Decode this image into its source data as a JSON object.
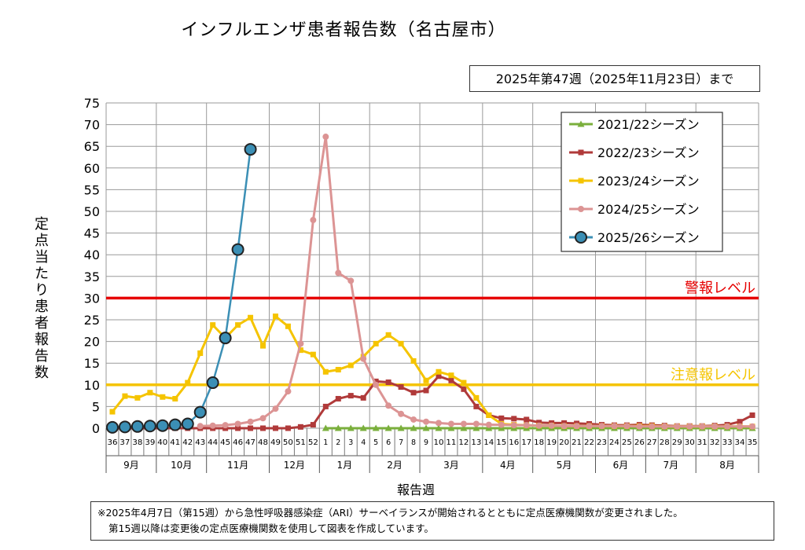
{
  "header": {
    "title": "インフルエンザ患者報告数（名古屋市）",
    "date_note": "2025年第47週（2025年11月23日）まで"
  },
  "footnote": {
    "line1": "※2025年4月7日（第15週）から急性呼吸器感染症（ARI）サーベイランスが開始されるとともに定点医療機関数が変更されました。",
    "line2": "第15週以降は変更後の定点医療機関数を使用して図表を作成しています。"
  },
  "chart_data": {
    "type": "line",
    "title": "インフルエンザ患者報告数（名古屋市）",
    "ylabel": "定点当たり患者報告数",
    "xlabel": "報告週",
    "ylim": [
      0,
      75
    ],
    "yticks": [
      0,
      5,
      10,
      15,
      20,
      25,
      30,
      35,
      40,
      45,
      50,
      55,
      60,
      65,
      70,
      75
    ],
    "grid": true,
    "legend_position": "top-right",
    "weeks": [
      "36",
      "37",
      "38",
      "39",
      "40",
      "41",
      "42",
      "43",
      "44",
      "45",
      "46",
      "47",
      "48",
      "49",
      "50",
      "51",
      "52",
      "1",
      "2",
      "3",
      "4",
      "5",
      "6",
      "7",
      "8",
      "9",
      "10",
      "11",
      "12",
      "13",
      "14",
      "15",
      "16",
      "17",
      "18",
      "19",
      "20",
      "21",
      "22",
      "23",
      "24",
      "25",
      "26",
      "27",
      "28",
      "29",
      "30",
      "31",
      "32",
      "33",
      "34",
      "35"
    ],
    "months": [
      {
        "label": "9月",
        "start": 0,
        "end": 4
      },
      {
        "label": "10月",
        "start": 4,
        "end": 8
      },
      {
        "label": "11月",
        "start": 8,
        "end": 13
      },
      {
        "label": "12月",
        "start": 13,
        "end": 17
      },
      {
        "label": "1月",
        "start": 17,
        "end": 21
      },
      {
        "label": "2月",
        "start": 21,
        "end": 25
      },
      {
        "label": "3月",
        "start": 25,
        "end": 30
      },
      {
        "label": "4月",
        "start": 30,
        "end": 34
      },
      {
        "label": "5月",
        "start": 34,
        "end": 39
      },
      {
        "label": "6月",
        "start": 39,
        "end": 43
      },
      {
        "label": "7月",
        "start": 43,
        "end": 47
      },
      {
        "label": "8月",
        "start": 47,
        "end": 52
      }
    ],
    "thresholds": [
      {
        "label": "警報レベル",
        "value": 30,
        "color": "#e60000"
      },
      {
        "label": "注意報レベル",
        "value": 10,
        "color": "#f5c400"
      }
    ],
    "series": [
      {
        "name": "2021/22シーズン",
        "color": "#7aaf3c",
        "marker": "triangle",
        "values": [
          null,
          null,
          null,
          null,
          null,
          null,
          null,
          null,
          null,
          null,
          null,
          null,
          null,
          null,
          null,
          null,
          null,
          0,
          0,
          0,
          0,
          0,
          0,
          0,
          0,
          0,
          0,
          0,
          0,
          0,
          0,
          0,
          0,
          0,
          0,
          0,
          0,
          0,
          0,
          0,
          0,
          0,
          0,
          0,
          0,
          0,
          0,
          0,
          0,
          0,
          0,
          0
        ]
      },
      {
        "name": "2022/23シーズン",
        "color": "#b03a3a",
        "marker": "square",
        "values": [
          0,
          0,
          0,
          0,
          0,
          0,
          0,
          0,
          0,
          0,
          0,
          0,
          0,
          0,
          0,
          0.3,
          0.8,
          5,
          6.8,
          7.5,
          7,
          10.8,
          10.6,
          9.5,
          8.2,
          8.7,
          12,
          11,
          9,
          5,
          3,
          2.3,
          2.2,
          2,
          1.3,
          1.2,
          1.2,
          1.1,
          1,
          0.8,
          0.7,
          0.7,
          0.8,
          0.7,
          0.6,
          0.5,
          0.5,
          0.5,
          0.6,
          0.8,
          1.5,
          3
        ]
      },
      {
        "name": "2023/24シーズン",
        "color": "#f5c400",
        "marker": "square",
        "values": [
          3.8,
          7.4,
          7,
          8.2,
          7.2,
          6.8,
          10.5,
          17.3,
          23.8,
          20.8,
          23.8,
          25.5,
          19,
          25.8,
          23.5,
          18,
          17,
          13,
          13.5,
          14.5,
          16.5,
          19.5,
          21.5,
          19.5,
          15.5,
          11,
          13,
          12.2,
          10.5,
          7,
          3,
          1,
          0.8,
          0.7,
          0.6,
          0.6,
          0.5,
          0.5,
          0.5,
          0.5,
          0.5,
          0.5,
          0.5,
          0.5,
          0.4,
          0.4,
          0.4,
          0.4,
          0.4,
          0.4,
          0.4,
          0.4
        ]
      },
      {
        "name": "2024/25シーズン",
        "color": "#dc9494",
        "marker": "circle",
        "values": [
          null,
          null,
          null,
          null,
          null,
          null,
          null,
          0.5,
          0.6,
          0.7,
          1,
          1.5,
          2.3,
          4.5,
          8.5,
          19.5,
          48,
          67.2,
          35.8,
          34,
          16,
          10,
          5.2,
          3.3,
          2,
          1.5,
          1.2,
          1,
          1,
          1,
          0.8,
          0.8,
          0.7,
          0.7,
          0.6,
          0.6,
          0.5,
          0.5,
          0.5,
          0.5,
          0.5,
          0.5,
          0.4,
          0.4,
          0.4,
          0.4,
          0.4,
          0.4,
          0.4,
          0.4,
          0.4,
          0.4
        ]
      },
      {
        "name": "2025/26シーズン",
        "color": "#3b8fb5",
        "marker": "circle-large",
        "values": [
          0.2,
          0.3,
          0.4,
          0.5,
          0.6,
          0.8,
          1,
          3.7,
          10.5,
          20.8,
          41.2,
          64.3
        ]
      }
    ]
  }
}
